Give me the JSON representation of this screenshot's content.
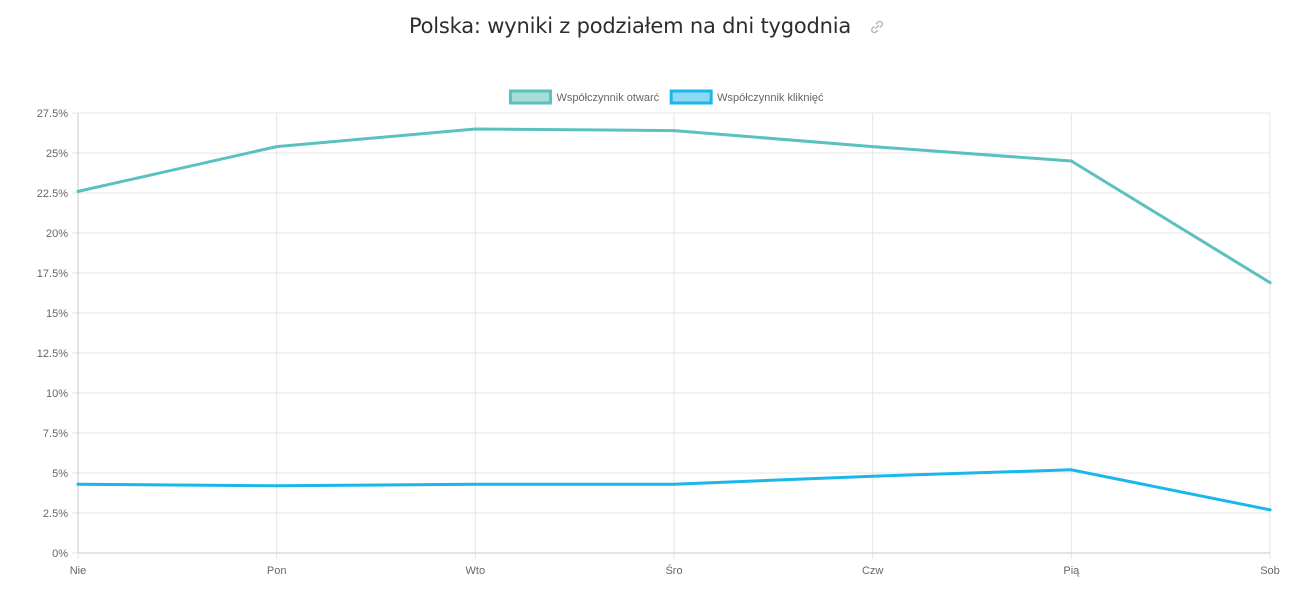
{
  "header": {
    "title": "Polska: wyniki z podziałem na dni tygodnia",
    "link_icon": "link-icon"
  },
  "chart_data": {
    "type": "line",
    "title": "Polska: wyniki z podziałem na dni tygodnia",
    "xlabel": "",
    "ylabel": "",
    "categories": [
      "Nie",
      "Pon",
      "Wto",
      "Śro",
      "Czw",
      "Pią",
      "Sob"
    ],
    "ylim": [
      0,
      27.5
    ],
    "yticks": [
      0,
      2.5,
      5,
      7.5,
      10,
      12.5,
      15,
      17.5,
      20,
      22.5,
      25,
      27.5
    ],
    "ytick_labels": [
      "0%",
      "2.5%",
      "5%",
      "7.5%",
      "10%",
      "12.5%",
      "15%",
      "17.5%",
      "20%",
      "22.5%",
      "25%",
      "27.5%"
    ],
    "grid": true,
    "legend_position": "top-center",
    "series": [
      {
        "name": "Współczynnik otwarć",
        "color": "#5bc0c0",
        "fill": "#a8dcd6",
        "values": [
          22.6,
          25.4,
          26.5,
          26.4,
          25.4,
          24.5,
          16.9
        ]
      },
      {
        "name": "Współczynnik kliknięć",
        "color": "#1ab7ea",
        "fill": "#8fd7f2",
        "values": [
          4.3,
          4.2,
          4.3,
          4.3,
          4.8,
          5.2,
          2.7
        ]
      }
    ]
  }
}
